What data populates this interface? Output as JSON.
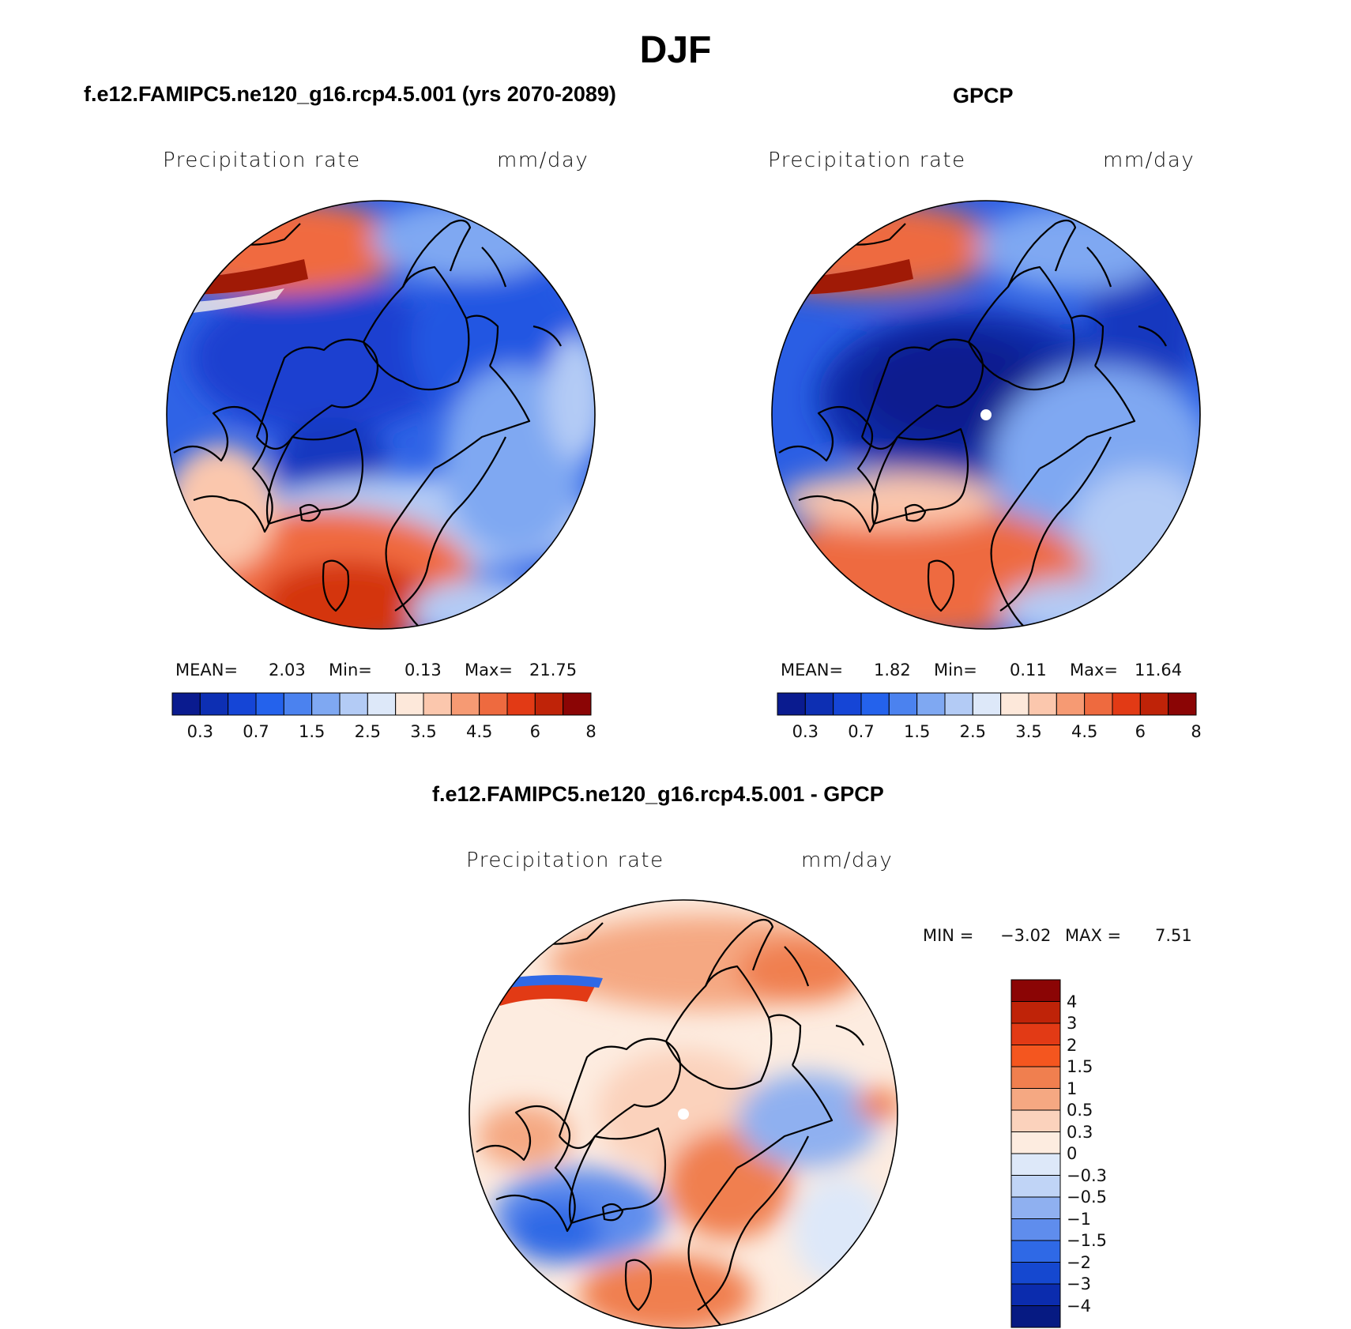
{
  "figure": {
    "title": "DJF"
  },
  "panels": {
    "model": {
      "title": "f.e12.FAMIPC5.ne120_g16.rcp4.5.001 (yrs 2070-2089)",
      "variable": "Precipitation rate",
      "units": "mm/day",
      "mean_label": "MEAN=",
      "mean": "2.03",
      "min_label": "Min=",
      "min": "0.13",
      "max_label": "Max=",
      "max": "21.75"
    },
    "obs": {
      "title": "GPCP",
      "variable": "Precipitation rate",
      "units": "mm/day",
      "mean_label": "MEAN=",
      "mean": "1.82",
      "min_label": "Min=",
      "min": "0.11",
      "max_label": "Max=",
      "max": "11.64"
    },
    "diff": {
      "title": "f.e12.FAMIPC5.ne120_g16.rcp4.5.001 - GPCP",
      "variable": "Precipitation rate",
      "units": "mm/day",
      "min_label": "MIN =",
      "min": "−3.02",
      "max_label": "MAX =",
      "max": "7.51"
    }
  },
  "colorbars": {
    "abs": {
      "colors": [
        "#0a1b8f",
        "#0d2fb3",
        "#1545d6",
        "#2462ec",
        "#4b82ef",
        "#7fa8f2",
        "#b3cbf5",
        "#dde8f9",
        "#fde8da",
        "#fbc7ad",
        "#f69a73",
        "#ee6a3f",
        "#e23a15",
        "#bf2308",
        "#8b0505"
      ],
      "tick_labels": [
        "0.3",
        "0.7",
        "1.5",
        "2.5",
        "3.5",
        "4.5",
        "6",
        "8"
      ]
    },
    "diff": {
      "colors": [
        "#8b0505",
        "#bf2308",
        "#e23a15",
        "#f4561f",
        "#f07f4f",
        "#f5a882",
        "#fbd2bc",
        "#fdece0",
        "#dde8f9",
        "#c0d4f6",
        "#8fb0f0",
        "#5f8ded",
        "#2f69e6",
        "#1548d0",
        "#0b2cae",
        "#061a82"
      ],
      "tick_labels": [
        "4",
        "3",
        "2",
        "1.5",
        "1",
        "0.5",
        "0.3",
        "0",
        "−0.3",
        "−0.5",
        "−1",
        "−1.5",
        "−2",
        "−3",
        "−4"
      ]
    }
  }
}
